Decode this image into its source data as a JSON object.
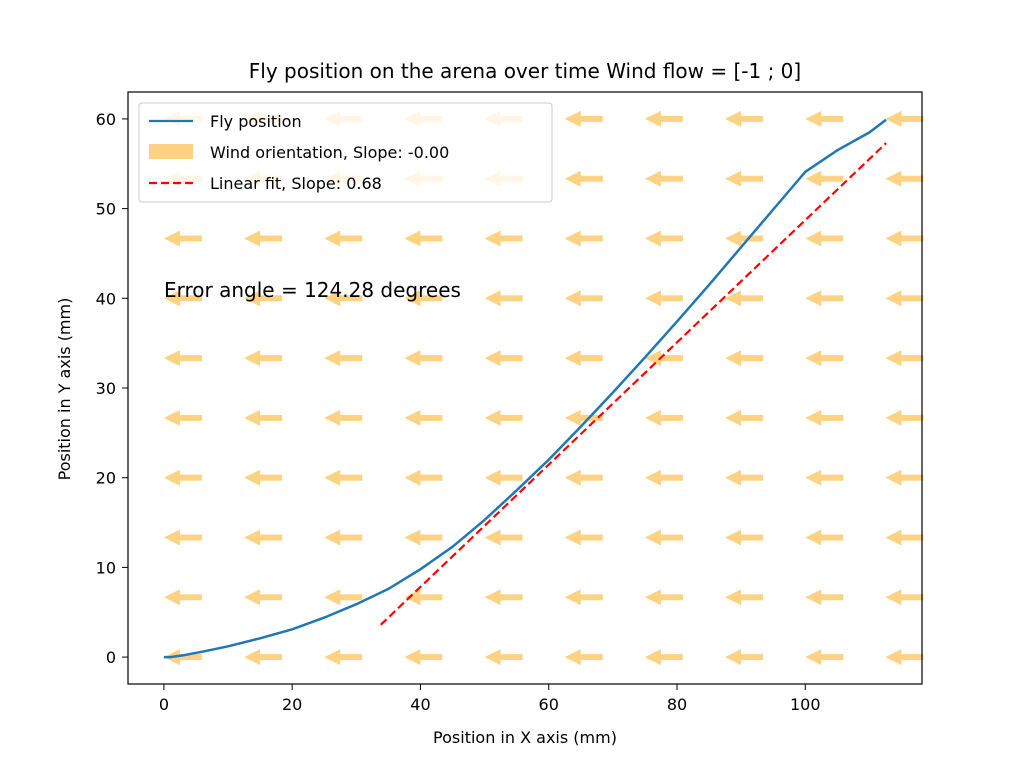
{
  "chart_data": {
    "type": "line",
    "title": "Fly position on the arena over time Wind flow = [-1 ; 0]",
    "xlabel": "Position in X axis (mm)",
    "ylabel": "Position in Y axis (mm)",
    "xlim": [
      -5.6,
      118.2
    ],
    "ylim": [
      -3.0,
      63.0
    ],
    "xticks": [
      0,
      20,
      40,
      60,
      80,
      100
    ],
    "yticks": [
      0,
      10,
      20,
      30,
      40,
      50,
      60
    ],
    "grid": false,
    "legend_position": "top-left",
    "annotation": "Error angle = 124.28 degrees",
    "series": [
      {
        "name": "Fly position",
        "color": "#1f77b4",
        "style": "solid",
        "x": [
          0,
          1,
          3,
          6,
          10,
          15,
          20,
          25,
          30,
          35,
          40,
          45,
          50,
          55,
          60,
          65,
          70,
          75,
          80,
          85,
          90,
          95,
          100,
          105,
          110,
          112.6
        ],
        "y": [
          0,
          0,
          0.2,
          0.6,
          1.2,
          2.1,
          3.1,
          4.4,
          5.9,
          7.6,
          9.8,
          12.3,
          15.3,
          18.6,
          22.0,
          25.7,
          29.5,
          33.4,
          37.4,
          41.5,
          45.7,
          49.9,
          54.1,
          56.5,
          58.5,
          59.9
        ]
      },
      {
        "name": "Linear fit, Slope: 0.68",
        "color": "#ff0000",
        "style": "dashed",
        "x": [
          33.8,
          112.6
        ],
        "y": [
          3.6,
          57.3
        ]
      }
    ],
    "wind": {
      "name": "Wind orientation, Slope: -0.00",
      "direction": [
        -1,
        0
      ],
      "color": "#fdd282",
      "grid_x": [
        0,
        12.5,
        25,
        37.5,
        50,
        62.5,
        75,
        87.5,
        100,
        112.5
      ],
      "grid_y": [
        0,
        6.67,
        13.33,
        20,
        26.67,
        33.33,
        40,
        46.67,
        53.33,
        60
      ]
    }
  }
}
